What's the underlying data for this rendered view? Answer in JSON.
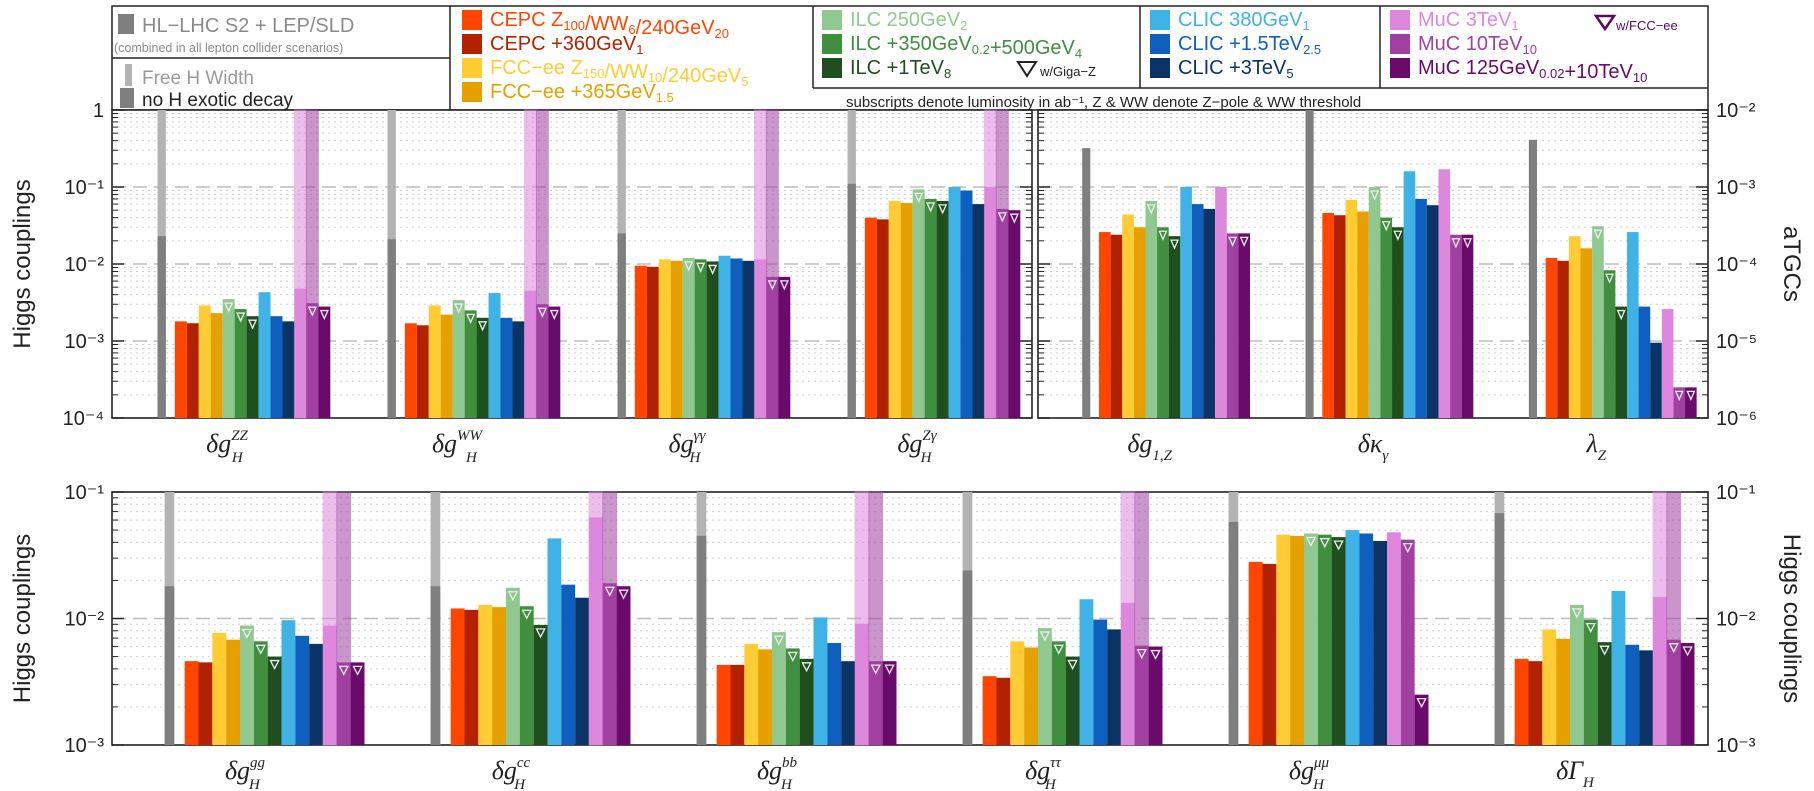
{
  "legend": {
    "hl": {
      "label": "HL−LHC S2 + LEP/SLD",
      "note": "(combined in all lepton collider scenarios)",
      "free_width": "Free H Width",
      "no_exotic": "no H exotic decay"
    },
    "cepc": [
      {
        "label": "CEPC Z100/WW6/240GeV20",
        "base": "CEPC Z",
        "parts": [
          [
            "CEPC Z",
            ""
          ],
          [
            "100",
            "sub"
          ],
          [
            "/WW",
            ""
          ],
          [
            "6",
            "sub"
          ],
          [
            "/240GeV",
            ""
          ],
          [
            "20",
            "sub"
          ]
        ],
        "color": "#ff4500"
      },
      {
        "label": "CEPC +360GeV1",
        "parts": [
          [
            "CEPC +360GeV",
            ""
          ],
          [
            "1",
            "sub"
          ]
        ],
        "color": "#b22200"
      }
    ],
    "fcc": [
      {
        "label": "FCC−ee Z150/WW10/240GeV5",
        "parts": [
          [
            "FCC−ee Z",
            ""
          ],
          [
            "150",
            "sub"
          ],
          [
            "/WW",
            ""
          ],
          [
            "10",
            "sub"
          ],
          [
            "/240GeV",
            ""
          ],
          [
            "5",
            "sub"
          ]
        ],
        "color": "#ffcc33"
      },
      {
        "label": "FCC−ee +365GeV1.5",
        "parts": [
          [
            "FCC−ee +365GeV",
            ""
          ],
          [
            "1.5",
            "sub"
          ]
        ],
        "color": "#e6a000"
      }
    ],
    "ilc": [
      {
        "label": "ILC 250GeV2",
        "parts": [
          [
            "ILC 250GeV",
            ""
          ],
          [
            "2",
            "sub"
          ]
        ],
        "color": "#8fc98f"
      },
      {
        "label": "ILC +350GeV0.2+500GeV4",
        "parts": [
          [
            "ILC +350GeV",
            ""
          ],
          [
            "0.2",
            "sub"
          ],
          [
            "+500GeV",
            ""
          ],
          [
            "4",
            "sub"
          ]
        ],
        "color": "#3f8f3f"
      },
      {
        "label": "ILC +1TeV8",
        "parts": [
          [
            "ILC +1TeV",
            ""
          ],
          [
            "8",
            "sub"
          ]
        ],
        "color": "#1f4f1f"
      }
    ],
    "ilc_marker": "w/Giga−Z",
    "clic": [
      {
        "label": "CLIC 380GeV1",
        "parts": [
          [
            "CLIC 380GeV",
            ""
          ],
          [
            "1",
            "sub"
          ]
        ],
        "color": "#3fb3e6"
      },
      {
        "label": "CLIC +1.5TeV2.5",
        "parts": [
          [
            "CLIC +1.5TeV",
            ""
          ],
          [
            "2.5",
            "sub"
          ]
        ],
        "color": "#0f5fbf"
      },
      {
        "label": "CLIC +3TeV5",
        "parts": [
          [
            "CLIC +3TeV",
            ""
          ],
          [
            "5",
            "sub"
          ]
        ],
        "color": "#0a3366"
      }
    ],
    "muc": [
      {
        "label": "MuC 3TeV1",
        "parts": [
          [
            "MuC 3TeV",
            ""
          ],
          [
            "1",
            "sub"
          ]
        ],
        "color": "#dd88dd"
      },
      {
        "label": "MuC 10TeV10",
        "parts": [
          [
            "MuC 10TeV",
            ""
          ],
          [
            "10",
            "sub"
          ]
        ],
        "color": "#a040a0"
      },
      {
        "label": "MuC 125GeV0.02+10TeV10",
        "parts": [
          [
            "MuC 125GeV",
            ""
          ],
          [
            "0.02",
            "sub"
          ],
          [
            "+10TeV",
            ""
          ],
          [
            "10",
            "sub"
          ]
        ],
        "color": "#6a0a6a"
      }
    ],
    "muc_marker": "w/FCC−ee",
    "footnote": "subscripts denote luminosity in ab⁻¹,   Z & WW denote Z−pole & WW threshold"
  },
  "colors": {
    "hl_free": "#b3b3b3",
    "hl_noexotic": "#7f7f7f",
    "cepc1": "#ff4500",
    "cepc2": "#b22200",
    "fcc1": "#ffcc33",
    "fcc2": "#e6a000",
    "ilc1": "#8fc98f",
    "ilc2": "#3f8f3f",
    "ilc3": "#1f4f1f",
    "clic1": "#3fb3e6",
    "clic2": "#0f5fbf",
    "clic3": "#0a3366",
    "muc1": "#dd88dd",
    "muc2": "#a040a0",
    "muc3": "#6a0a6a"
  },
  "chart_data": [
    {
      "type": "bar",
      "panel": "top-left",
      "yscale": "log",
      "ylim": [
        0.0001,
        1
      ],
      "ylabel": "Higgs couplings",
      "ytick_labels": [
        "1",
        "10⁻¹",
        "10⁻²",
        "10⁻³",
        "10⁻⁴"
      ],
      "categories": [
        "δg_H^ZZ",
        "δg_H^WW",
        "δg_H^γγ",
        "δg_H^Zγ"
      ],
      "category_labels": [
        {
          "main": "δg",
          "sub": "H",
          "sup": "ZZ"
        },
        {
          "main": "δg",
          "sub": "H",
          "sup": "WW"
        },
        {
          "main": "δg",
          "sub": "H",
          "sup": "γγ"
        },
        {
          "main": "δg",
          "sub": "H",
          "sup": "Zγ"
        }
      ],
      "series": [
        {
          "name": "HL−LHC S2 + LEP/SLD (free H width)",
          "values": [
            1,
            1,
            1,
            1
          ]
        },
        {
          "name": "HL−LHC S2 + LEP/SLD (no H exotic decay)",
          "values": [
            0.023,
            0.021,
            0.025,
            0.11
          ]
        },
        {
          "name": "CEPC Z100/WW6/240GeV20",
          "values": [
            0.0018,
            0.0017,
            0.0095,
            0.04
          ]
        },
        {
          "name": "CEPC +360GeV1",
          "values": [
            0.0017,
            0.0016,
            0.0092,
            0.038
          ]
        },
        {
          "name": "FCC−ee Z150/WW10/240GeV5",
          "values": [
            0.0029,
            0.0029,
            0.0115,
            0.066
          ]
        },
        {
          "name": "FCC−ee +365GeV1.5",
          "values": [
            0.0023,
            0.0022,
            0.011,
            0.062
          ]
        },
        {
          "name": "ILC 250GeV2",
          "values": [
            0.0035,
            0.0034,
            0.012,
            0.093
          ]
        },
        {
          "name": "ILC +350GeV0.2+500GeV4",
          "values": [
            0.0026,
            0.0025,
            0.0115,
            0.07
          ]
        },
        {
          "name": "ILC +1TeV8",
          "values": [
            0.0021,
            0.002,
            0.0108,
            0.066
          ]
        },
        {
          "name": "CLIC 380GeV1",
          "values": [
            0.0043,
            0.0042,
            0.0128,
            0.1
          ]
        },
        {
          "name": "CLIC +1.5TeV2.5",
          "values": [
            0.0021,
            0.002,
            0.0118,
            0.09
          ]
        },
        {
          "name": "CLIC +3TeV5",
          "values": [
            0.0018,
            0.0018,
            0.011,
            0.06
          ]
        },
        {
          "name": "MuC 3TeV1",
          "values": [
            0.0048,
            0.0045,
            0.0115,
            0.1
          ]
        },
        {
          "name": "MuC 10TeV10",
          "values": [
            0.0031,
            0.003,
            0.0068,
            0.052
          ]
        },
        {
          "name": "MuC 125GeV0.02+10TeV10",
          "values": [
            0.0028,
            0.0028,
            0.0068,
            0.05
          ]
        }
      ],
      "muc_free_width_extends_to_top": [
        1,
        1,
        1,
        1
      ]
    },
    {
      "type": "bar",
      "panel": "top-right",
      "yscale": "log",
      "ylim": [
        1e-06,
        0.01
      ],
      "ylabel": "aTGCs",
      "ytick_labels": [
        "10⁻²",
        "10⁻³",
        "10⁻⁴",
        "10⁻⁵",
        "10⁻⁶"
      ],
      "categories": [
        "δg_1,Z",
        "δκ_γ",
        "λ_Z"
      ],
      "category_labels": [
        {
          "main": "δg",
          "sub": "1,Z",
          "sup": ""
        },
        {
          "main": "δκ",
          "sub": "γ",
          "sup": ""
        },
        {
          "main": "λ",
          "sub": "Z",
          "sup": ""
        }
      ],
      "series": [
        {
          "name": "HL−LHC S2 + LEP/SLD",
          "values": [
            0.0032,
            0.01,
            0.0041
          ]
        },
        {
          "name": "CEPC Z100/WW6/240GeV20",
          "values": [
            0.00026,
            0.00046,
            0.00012
          ]
        },
        {
          "name": "CEPC +360GeV1",
          "values": [
            0.00024,
            0.00043,
            0.00011
          ]
        },
        {
          "name": "FCC−ee Z150/WW10/240GeV5",
          "values": [
            0.00044,
            0.00068,
            0.00023
          ]
        },
        {
          "name": "FCC−ee +365GeV1.5",
          "values": [
            0.0003,
            0.00048,
            0.00016
          ]
        },
        {
          "name": "ILC 250GeV2",
          "values": [
            0.00066,
            0.001,
            0.00031
          ]
        },
        {
          "name": "ILC +350GeV0.2+500GeV4",
          "values": [
            0.0003,
            0.0004,
            8.3e-05
          ]
        },
        {
          "name": "ILC +1TeV8",
          "values": [
            0.00023,
            0.0003,
            2.8e-05
          ]
        },
        {
          "name": "CLIC 380GeV1",
          "values": [
            0.001,
            0.0016,
            0.00026
          ]
        },
        {
          "name": "CLIC +1.5TeV2.5",
          "values": [
            0.0006,
            0.0007,
            2.8e-05
          ]
        },
        {
          "name": "CLIC +3TeV5",
          "values": [
            0.00052,
            0.00058,
            9.5e-06
          ]
        },
        {
          "name": "MuC 3TeV1",
          "values": [
            0.001,
            0.0017,
            2.6e-05
          ]
        },
        {
          "name": "MuC 10TeV10",
          "values": [
            0.00025,
            0.00024,
            2.5e-06
          ]
        },
        {
          "name": "MuC 125GeV0.02+10TeV10",
          "values": [
            0.00025,
            0.00024,
            2.5e-06
          ]
        }
      ]
    },
    {
      "type": "bar",
      "panel": "bottom",
      "yscale": "log",
      "ylim": [
        0.001,
        0.1
      ],
      "ylabel": "Higgs couplings",
      "ytick_labels": [
        "10⁻¹",
        "10⁻²",
        "10⁻³"
      ],
      "categories": [
        "δg_H^gg",
        "δg_H^cc",
        "δg_H^bb",
        "δg_H^ττ",
        "δg_H^μμ",
        "δΓ_H"
      ],
      "category_labels": [
        {
          "main": "δg",
          "sub": "H",
          "sup": "gg"
        },
        {
          "main": "δg",
          "sub": "H",
          "sup": "cc"
        },
        {
          "main": "δg",
          "sub": "H",
          "sup": "bb"
        },
        {
          "main": "δg",
          "sub": "H",
          "sup": "ττ"
        },
        {
          "main": "δg",
          "sub": "H",
          "sup": "μμ"
        },
        {
          "main": "δΓ",
          "sub": "H",
          "sup": ""
        }
      ],
      "series": [
        {
          "name": "HL−LHC S2 + LEP/SLD (free H width)",
          "values": [
            0.1,
            0.1,
            0.1,
            0.1,
            0.1,
            0.1
          ]
        },
        {
          "name": "HL−LHC S2 + LEP/SLD (no H exotic decay)",
          "values": [
            0.018,
            0.018,
            0.045,
            0.024,
            0.058,
            0.068
          ]
        },
        {
          "name": "CEPC Z100/WW6/240GeV20",
          "values": [
            0.0046,
            0.012,
            0.0043,
            0.0035,
            0.028,
            0.0048
          ]
        },
        {
          "name": "CEPC +360GeV1",
          "values": [
            0.0045,
            0.0117,
            0.0043,
            0.0034,
            0.027,
            0.0046
          ]
        },
        {
          "name": "FCC−ee Z150/WW10/240GeV5",
          "values": [
            0.0077,
            0.0128,
            0.0063,
            0.0066,
            0.046,
            0.0082
          ]
        },
        {
          "name": "FCC−ee +365GeV1.5",
          "values": [
            0.0068,
            0.0123,
            0.0057,
            0.0059,
            0.045,
            0.0069
          ]
        },
        {
          "name": "ILC 250GeV2",
          "values": [
            0.0088,
            0.0175,
            0.0078,
            0.0084,
            0.047,
            0.0128
          ]
        },
        {
          "name": "ILC +350GeV0.2+500GeV4",
          "values": [
            0.0066,
            0.0125,
            0.0058,
            0.0066,
            0.046,
            0.0098
          ]
        },
        {
          "name": "ILC +1TeV8",
          "values": [
            0.005,
            0.0089,
            0.0048,
            0.005,
            0.044,
            0.0065
          ]
        },
        {
          "name": "CLIC 380GeV1",
          "values": [
            0.0097,
            0.043,
            0.0102,
            0.0142,
            0.05,
            0.0165
          ]
        },
        {
          "name": "CLIC +1.5TeV2.5",
          "values": [
            0.0073,
            0.0185,
            0.0064,
            0.0098,
            0.047,
            0.0062
          ]
        },
        {
          "name": "CLIC +3TeV5",
          "values": [
            0.0063,
            0.0146,
            0.0046,
            0.0082,
            0.041,
            0.0056
          ]
        },
        {
          "name": "MuC 3TeV1",
          "values": [
            0.0088,
            0.063,
            0.0091,
            0.0133,
            0.048,
            0.0148
          ]
        },
        {
          "name": "MuC 10TeV10",
          "values": [
            0.0045,
            0.019,
            0.0046,
            0.0061,
            0.042,
            0.0068
          ]
        },
        {
          "name": "MuC 125GeV0.02+10TeV10",
          "values": [
            0.0045,
            0.018,
            0.0046,
            0.006,
            0.0025,
            0.0064
          ]
        }
      ]
    }
  ]
}
